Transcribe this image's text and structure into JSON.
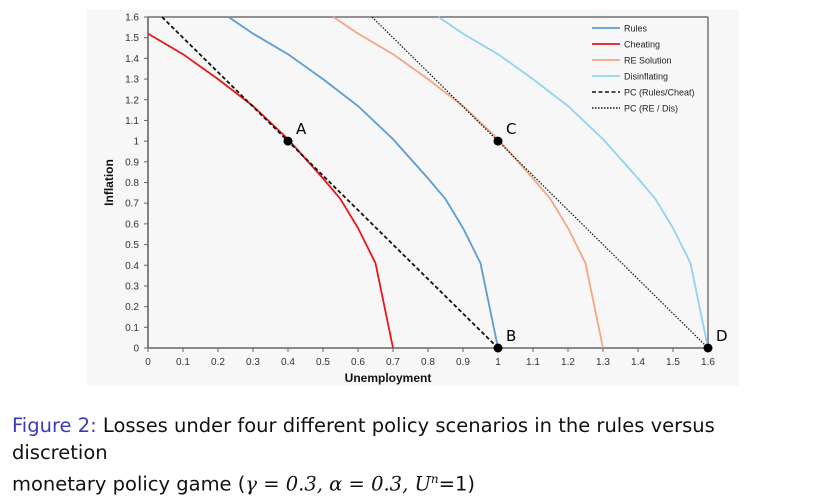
{
  "figure": {
    "caption_label": "Figure 2:",
    "caption_text_line1": " Losses under four different policy scenarios in the rules versus discretion",
    "caption_text_line2": "monetary policy game (",
    "caption_params": "γ = 0.3, α = 0.3, U",
    "caption_sup": "n",
    "caption_end": "=1)"
  },
  "colors": {
    "rules": "#5b9bd5",
    "cheating": "#e8161b",
    "re_solution": "#f4a582",
    "disinflating": "#8fd3f0",
    "pc": "#111111",
    "axis": "#666666",
    "panel_bg": "#f7f7f7"
  },
  "chart_data": {
    "type": "line",
    "title": "",
    "xlabel": "Unemployment",
    "ylabel": "Inflation",
    "xlim": [
      0,
      1.6
    ],
    "ylim": [
      0,
      1.6
    ],
    "grid": false,
    "legend_position": "top-right inside",
    "x_ticks": [
      "0",
      "0.1",
      "0.2",
      "0.3",
      "0.4",
      "0.5",
      "0.6",
      "0.7",
      "0.8",
      "0.9",
      "1",
      "1.1",
      "1.2",
      "1.3",
      "1.4",
      "1.5",
      "1.6"
    ],
    "y_ticks": [
      "0",
      "0.1",
      "0.2",
      "0.3",
      "0.4",
      "0.5",
      "0.6",
      "0.7",
      "0.8",
      "0.9",
      "1",
      "1.1",
      "1.2",
      "1.3",
      "1.4",
      "1.5",
      "1.6"
    ],
    "series": [
      {
        "name": "Rules",
        "style": "solid",
        "color_key": "rules",
        "points": [
          [
            0.23,
            1.6
          ],
          [
            0.3,
            1.52
          ],
          [
            0.4,
            1.42
          ],
          [
            0.5,
            1.3
          ],
          [
            0.6,
            1.17
          ],
          [
            0.7,
            1.01
          ],
          [
            0.8,
            0.82
          ],
          [
            0.85,
            0.72
          ],
          [
            0.9,
            0.58
          ],
          [
            0.95,
            0.41
          ],
          [
            1.0,
            0
          ]
        ]
      },
      {
        "name": "Cheating",
        "style": "solid",
        "color_key": "cheating",
        "points": [
          [
            0,
            1.52
          ],
          [
            0.1,
            1.42
          ],
          [
            0.2,
            1.3
          ],
          [
            0.3,
            1.17
          ],
          [
            0.4,
            1.01
          ],
          [
            0.5,
            0.82
          ],
          [
            0.55,
            0.72
          ],
          [
            0.6,
            0.58
          ],
          [
            0.65,
            0.41
          ],
          [
            0.7,
            0
          ]
        ]
      },
      {
        "name": "RE Solution",
        "style": "solid",
        "color_key": "re_solution",
        "points": [
          [
            0.53,
            1.6
          ],
          [
            0.6,
            1.52
          ],
          [
            0.7,
            1.42
          ],
          [
            0.8,
            1.3
          ],
          [
            0.9,
            1.17
          ],
          [
            1.0,
            1.01
          ],
          [
            1.1,
            0.82
          ],
          [
            1.15,
            0.72
          ],
          [
            1.2,
            0.58
          ],
          [
            1.25,
            0.41
          ],
          [
            1.3,
            0
          ]
        ]
      },
      {
        "name": "Disinflating",
        "style": "solid",
        "color_key": "disinflating",
        "points": [
          [
            0.83,
            1.6
          ],
          [
            0.9,
            1.52
          ],
          [
            1.0,
            1.42
          ],
          [
            1.1,
            1.3
          ],
          [
            1.2,
            1.17
          ],
          [
            1.3,
            1.01
          ],
          [
            1.4,
            0.82
          ],
          [
            1.45,
            0.72
          ],
          [
            1.5,
            0.58
          ],
          [
            1.55,
            0.41
          ],
          [
            1.6,
            0
          ]
        ]
      },
      {
        "name": "PC (Rules/Cheat)",
        "style": "dashed",
        "color_key": "pc",
        "points": [
          [
            0.04,
            1.6
          ],
          [
            1.0,
            0
          ]
        ]
      },
      {
        "name": "PC (RE / Dis)",
        "style": "dotted",
        "color_key": "pc",
        "points": [
          [
            0.64,
            1.6
          ],
          [
            1.6,
            0
          ]
        ]
      }
    ],
    "annotations": [
      {
        "label": "A",
        "x": 0.4,
        "y": 1.0
      },
      {
        "label": "B",
        "x": 1.0,
        "y": 0
      },
      {
        "label": "C",
        "x": 1.0,
        "y": 1.0
      },
      {
        "label": "D",
        "x": 1.6,
        "y": 0
      }
    ]
  }
}
